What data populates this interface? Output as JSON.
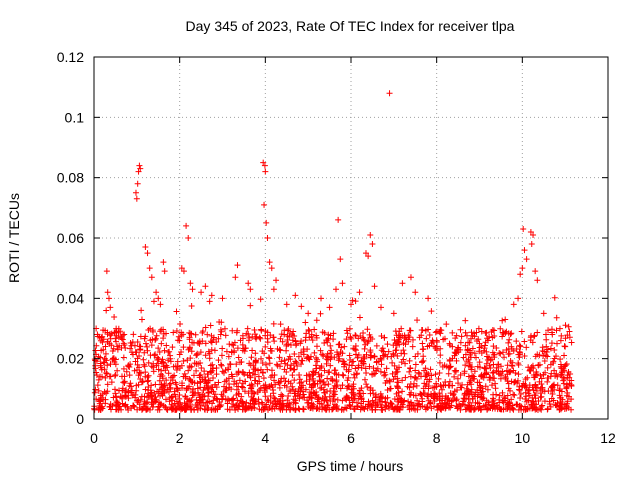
{
  "chart_data": {
    "type": "scatter",
    "title": "Day 345 of 2023, Rate Of TEC Index for receiver tlpa",
    "xlabel": "GPS time / hours",
    "ylabel": "ROTI / TECUs",
    "xlim": [
      0,
      12
    ],
    "ylim": [
      0,
      0.12
    ],
    "x_ticks": [
      0,
      2,
      4,
      6,
      8,
      10,
      12
    ],
    "x_tick_labels": [
      "0",
      "2",
      "4",
      "6",
      "8",
      "10",
      "12"
    ],
    "y_ticks": [
      0,
      0.02,
      0.04,
      0.06,
      0.08,
      0.1,
      0.12
    ],
    "y_tick_labels": [
      "0",
      "0.02",
      "0.04",
      "0.06",
      "0.08",
      "0.1",
      "0.12"
    ],
    "grid": true,
    "marker": "+",
    "color": "#ff0000",
    "series": [
      {
        "name": "ROTI",
        "points": [
          [
            0.05,
            0.03
          ],
          [
            0.08,
            0.028
          ],
          [
            0.3,
            0.049
          ],
          [
            0.32,
            0.042
          ],
          [
            0.35,
            0.04
          ],
          [
            0.38,
            0.037
          ],
          [
            0.98,
            0.075
          ],
          [
            1.0,
            0.073
          ],
          [
            1.02,
            0.078
          ],
          [
            1.04,
            0.082
          ],
          [
            1.06,
            0.084
          ],
          [
            1.08,
            0.083
          ],
          [
            1.1,
            0.036
          ],
          [
            1.12,
            0.033
          ],
          [
            1.2,
            0.057
          ],
          [
            1.25,
            0.055
          ],
          [
            1.3,
            0.05
          ],
          [
            1.35,
            0.047
          ],
          [
            1.4,
            0.039
          ],
          [
            1.45,
            0.042
          ],
          [
            1.5,
            0.04
          ],
          [
            1.55,
            0.038
          ],
          [
            1.62,
            0.052
          ],
          [
            1.65,
            0.049
          ],
          [
            2.05,
            0.05
          ],
          [
            2.1,
            0.049
          ],
          [
            2.15,
            0.064
          ],
          [
            2.2,
            0.06
          ],
          [
            2.25,
            0.045
          ],
          [
            2.3,
            0.043
          ],
          [
            2.5,
            0.042
          ],
          [
            2.6,
            0.044
          ],
          [
            2.7,
            0.039
          ],
          [
            2.75,
            0.041
          ],
          [
            3.0,
            0.04
          ],
          [
            3.3,
            0.047
          ],
          [
            3.35,
            0.051
          ],
          [
            3.6,
            0.045
          ],
          [
            3.65,
            0.043
          ],
          [
            3.95,
            0.085
          ],
          [
            3.97,
            0.071
          ],
          [
            3.99,
            0.084
          ],
          [
            4.0,
            0.082
          ],
          [
            4.02,
            0.065
          ],
          [
            4.05,
            0.06
          ],
          [
            4.1,
            0.052
          ],
          [
            4.15,
            0.05
          ],
          [
            4.2,
            0.043
          ],
          [
            4.25,
            0.046
          ],
          [
            4.5,
            0.038
          ],
          [
            4.7,
            0.041
          ],
          [
            5.0,
            0.035
          ],
          [
            5.3,
            0.04
          ],
          [
            5.5,
            0.037
          ],
          [
            5.65,
            0.043
          ],
          [
            5.7,
            0.066
          ],
          [
            5.75,
            0.053
          ],
          [
            5.8,
            0.045
          ],
          [
            6.0,
            0.038
          ],
          [
            6.2,
            0.042
          ],
          [
            6.35,
            0.055
          ],
          [
            6.4,
            0.054
          ],
          [
            6.45,
            0.061
          ],
          [
            6.5,
            0.058
          ],
          [
            6.55,
            0.044
          ],
          [
            6.7,
            0.037
          ],
          [
            6.9,
            0.108
          ],
          [
            7.0,
            0.035
          ],
          [
            7.2,
            0.045
          ],
          [
            7.4,
            0.047
          ],
          [
            7.5,
            0.042
          ],
          [
            7.8,
            0.04
          ],
          [
            8.0,
            0.026
          ],
          [
            8.3,
            0.025
          ],
          [
            8.5,
            0.023
          ],
          [
            8.8,
            0.022
          ],
          [
            9.0,
            0.025
          ],
          [
            9.3,
            0.027
          ],
          [
            9.6,
            0.033
          ],
          [
            9.8,
            0.038
          ],
          [
            9.9,
            0.04
          ],
          [
            9.95,
            0.048
          ],
          [
            10.0,
            0.05
          ],
          [
            10.02,
            0.063
          ],
          [
            10.05,
            0.056
          ],
          [
            10.1,
            0.053
          ],
          [
            10.2,
            0.062
          ],
          [
            10.22,
            0.058
          ],
          [
            10.25,
            0.061
          ],
          [
            10.3,
            0.049
          ],
          [
            10.35,
            0.046
          ],
          [
            10.5,
            0.035
          ],
          [
            10.7,
            0.028
          ],
          [
            10.9,
            0.026
          ],
          [
            11.0,
            0.024
          ],
          [
            11.1,
            0.029
          ]
        ]
      }
    ],
    "dense_band": {
      "x_range": [
        0,
        11.15
      ],
      "baseline_min": 0.003,
      "baseline_max": 0.03,
      "description_values": "dense cluster of points mostly between 0.005 and 0.025 TECU across all hours"
    }
  }
}
